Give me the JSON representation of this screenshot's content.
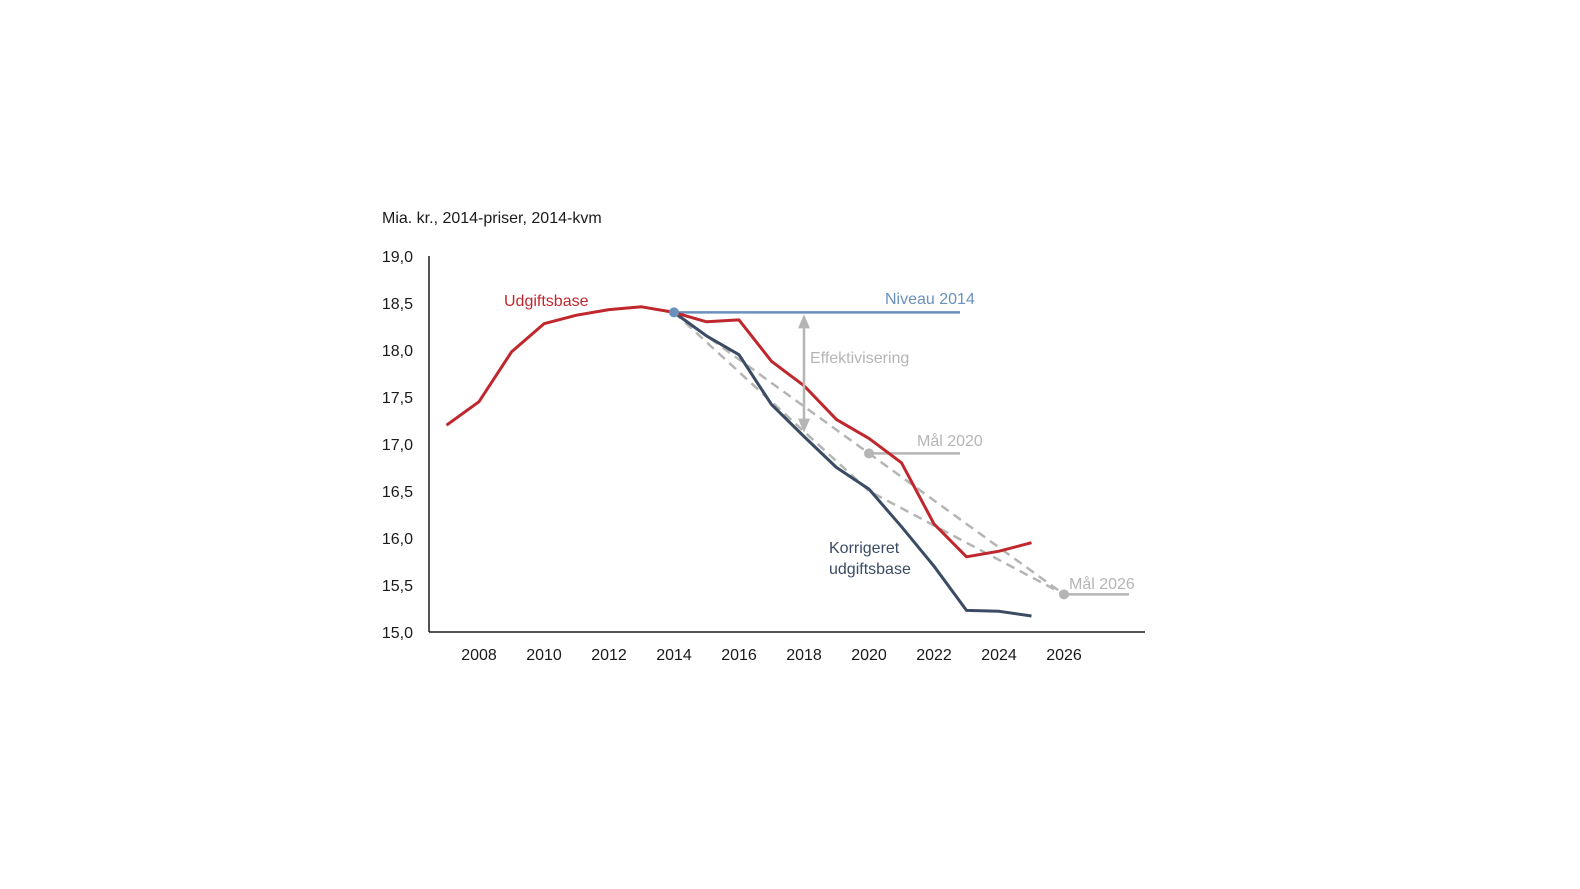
{
  "chart_data": {
    "type": "line",
    "unit_label": "Mia. kr., 2014-priser, 2014-kvm",
    "ylim": [
      15.0,
      19.0
    ],
    "y_ticks": [
      "15,0",
      "15,5",
      "16,0",
      "16,5",
      "17,0",
      "17,5",
      "18,0",
      "18,5",
      "19,0"
    ],
    "x_ticks": [
      "2008",
      "2010",
      "2012",
      "2014",
      "2016",
      "2018",
      "2020",
      "2022",
      "2024",
      "2026"
    ],
    "grid": false,
    "series": [
      {
        "name": "Udgiftsbase",
        "color": "#c0272d",
        "x": [
          2007,
          2008,
          2009,
          2010,
          2011,
          2012,
          2013,
          2014,
          2015,
          2016,
          2017,
          2018,
          2019,
          2020,
          2021,
          2022,
          2023,
          2024,
          2025
        ],
        "values": [
          17.2,
          17.45,
          17.98,
          18.28,
          18.37,
          18.43,
          18.46,
          18.4,
          18.3,
          18.32,
          17.88,
          17.62,
          17.26,
          17.06,
          16.8,
          16.15,
          15.8,
          15.86,
          15.95
        ]
      },
      {
        "name": "Korrigeret udgiftsbase",
        "name_lines": [
          "Korrigeret",
          "udgiftsbase"
        ],
        "color": "#3a4b63",
        "x": [
          2014,
          2015,
          2016,
          2017,
          2018,
          2019,
          2020,
          2021,
          2022,
          2023,
          2024,
          2025
        ],
        "values": [
          18.4,
          18.15,
          17.95,
          17.42,
          17.08,
          16.75,
          16.52,
          16.12,
          15.7,
          15.23,
          15.22,
          15.17
        ]
      },
      {
        "name": "Niveau  2014",
        "color": "#6a90bd",
        "x": [
          2014,
          2022.8
        ],
        "values": [
          18.4,
          18.4
        ]
      },
      {
        "name": "Mål 2020",
        "color": "#b5b5b5",
        "x": [
          2020,
          2022.8
        ],
        "values": [
          16.9,
          16.9
        ]
      },
      {
        "name": "Mål 2026",
        "color": "#b5b5b5",
        "x": [
          2026,
          2028
        ],
        "values": [
          15.4,
          15.4
        ]
      }
    ],
    "dashed_paths": [
      {
        "color": "#b5b5b5",
        "x": [
          2014,
          2020,
          2026
        ],
        "values": [
          18.4,
          16.9,
          15.4
        ]
      },
      {
        "color": "#b5b5b5",
        "x": [
          2014,
          2020,
          2026
        ],
        "values": [
          18.4,
          16.5,
          15.4
        ]
      }
    ],
    "markers": [
      {
        "x": 2014,
        "value": 18.4,
        "color": "#6a90bd"
      },
      {
        "x": 2020,
        "value": 16.9,
        "color": "#b5b5b5"
      },
      {
        "x": 2026,
        "value": 15.4,
        "color": "#b5b5b5"
      }
    ],
    "annotations": {
      "effektivisering": {
        "text": "Effektivisering",
        "color": "#b5b5b5",
        "x": 2018,
        "from": 18.4,
        "to": 17.1
      }
    }
  }
}
